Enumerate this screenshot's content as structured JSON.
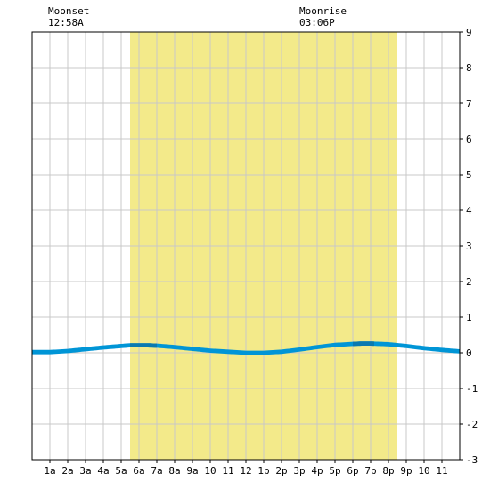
{
  "header": {
    "moonset_label": "Moonset",
    "moonset_time": "12:58A",
    "moonrise_label": "Moonrise",
    "moonrise_time": "03:06P"
  },
  "colors": {
    "daylight": "#f3ea8a",
    "tide_light": "#0095d6",
    "tide_dark": "#0a79b0",
    "grid": "#c8c8c8",
    "background": "#ffffff",
    "axis": "#000000"
  },
  "chart_data": {
    "type": "area",
    "title": "",
    "xlabel": "",
    "ylabel": "",
    "xlim": [
      0,
      24
    ],
    "ylim": [
      -3,
      9
    ],
    "x_tick_labels": [
      "1a",
      "2a",
      "3a",
      "4a",
      "5a",
      "6a",
      "7a",
      "8a",
      "9a",
      "10",
      "11",
      "12",
      "1p",
      "2p",
      "3p",
      "4p",
      "5p",
      "6p",
      "7p",
      "8p",
      "9p",
      "10",
      "11"
    ],
    "y_tick_labels": [
      "9",
      "8",
      "7",
      "6",
      "5",
      "4",
      "3",
      "2",
      "1",
      "0",
      "-1",
      "-2",
      "-3"
    ],
    "y_tick_values": [
      9,
      8,
      7,
      6,
      5,
      4,
      3,
      2,
      1,
      0,
      -1,
      -2,
      -3
    ],
    "grid": true,
    "daylight_start_hour": 5.5,
    "daylight_end_hour": 20.5,
    "series": [
      {
        "x": [
          0,
          1,
          2,
          3,
          4,
          5,
          5.5,
          6,
          6.5,
          7,
          8,
          9,
          10,
          11,
          12,
          12.5,
          13,
          14,
          15,
          16,
          17,
          18,
          18.5,
          19,
          20,
          21,
          22,
          23,
          24
        ],
        "values": [
          0.08,
          0.08,
          0.11,
          0.16,
          0.21,
          0.25,
          0.27,
          0.27,
          0.27,
          0.26,
          0.22,
          0.17,
          0.12,
          0.09,
          0.06,
          0.06,
          0.06,
          0.09,
          0.15,
          0.22,
          0.28,
          0.31,
          0.32,
          0.32,
          0.3,
          0.25,
          0.19,
          0.14,
          0.1
        ]
      }
    ],
    "dark_segments": [
      [
        5.5,
        7
      ],
      [
        18,
        19.25
      ]
    ]
  }
}
